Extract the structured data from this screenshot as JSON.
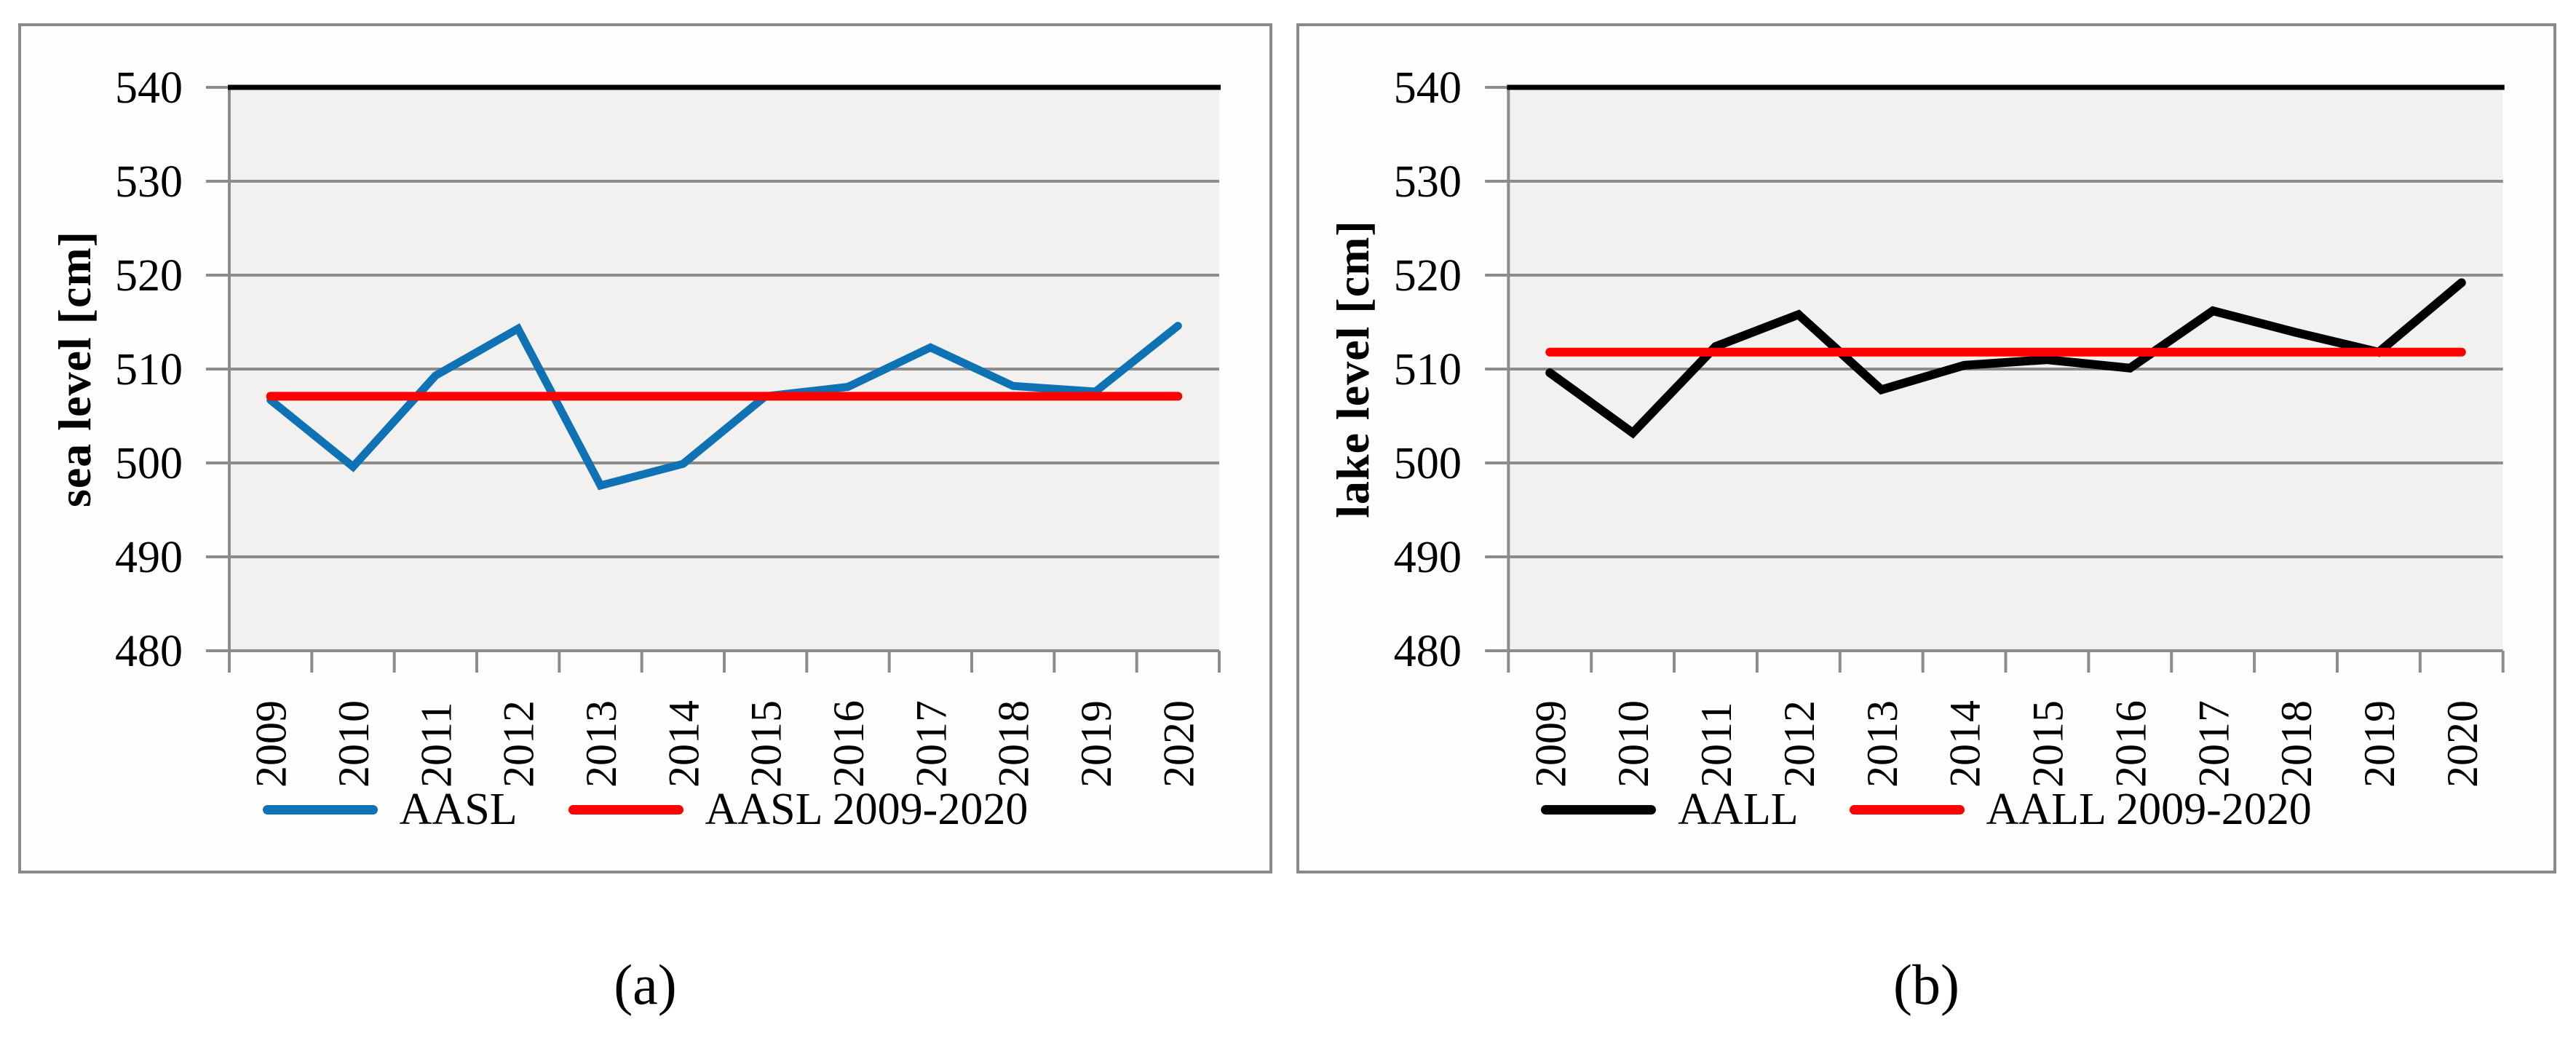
{
  "style": {
    "plot_bg": "#F2F1EF",
    "grid_color": "#8C8C8C",
    "axis_color": "#8C8C8C",
    "top_border_color": "#000000",
    "panel_border_color": "#8A8A8A",
    "mean_line_color": "#FE0000",
    "text_color": "#000000"
  },
  "figure": {
    "captions": {
      "a": "(a)",
      "b": "(b)"
    }
  },
  "chart_data": [
    {
      "type": "line",
      "caption": "(a)",
      "ylabel": "sea level [cm]",
      "ylim": [
        480,
        540
      ],
      "yticks": [
        540,
        530,
        520,
        510,
        500,
        490,
        480
      ],
      "x": [
        "2009",
        "2010",
        "2011",
        "2012",
        "2013",
        "2014",
        "2015",
        "2016",
        "2017",
        "2018",
        "2019",
        "2020"
      ],
      "grid": true,
      "legend_position": "bottom",
      "series": [
        {
          "name": "AASL",
          "color": "#0E72B4",
          "width": 11,
          "values": [
            506.7,
            499.6,
            509.3,
            514.3,
            497.6,
            499.9,
            507.1,
            508.1,
            512.3,
            508.2,
            507.6,
            514.6
          ]
        },
        {
          "name": "AASL 2009-2020",
          "color": "#FE0000",
          "width": 12,
          "constant": 507.1
        }
      ]
    },
    {
      "type": "line",
      "caption": "(b)",
      "ylabel": "lake level [cm]",
      "ylim": [
        480,
        540
      ],
      "yticks": [
        540,
        530,
        520,
        510,
        500,
        490,
        480
      ],
      "x": [
        "2009",
        "2010",
        "2011",
        "2012",
        "2013",
        "2014",
        "2015",
        "2016",
        "2017",
        "2018",
        "2019",
        "2020"
      ],
      "grid": true,
      "legend_position": "bottom",
      "series": [
        {
          "name": "AALL",
          "color": "#000000",
          "width": 12,
          "values": [
            509.6,
            503.2,
            512.4,
            515.8,
            507.8,
            510.4,
            511.0,
            510.1,
            516.2,
            513.9,
            511.8,
            519.2
          ]
        },
        {
          "name": "AALL 2009-2020",
          "color": "#FE0000",
          "width": 12,
          "constant": 511.8
        }
      ]
    }
  ]
}
